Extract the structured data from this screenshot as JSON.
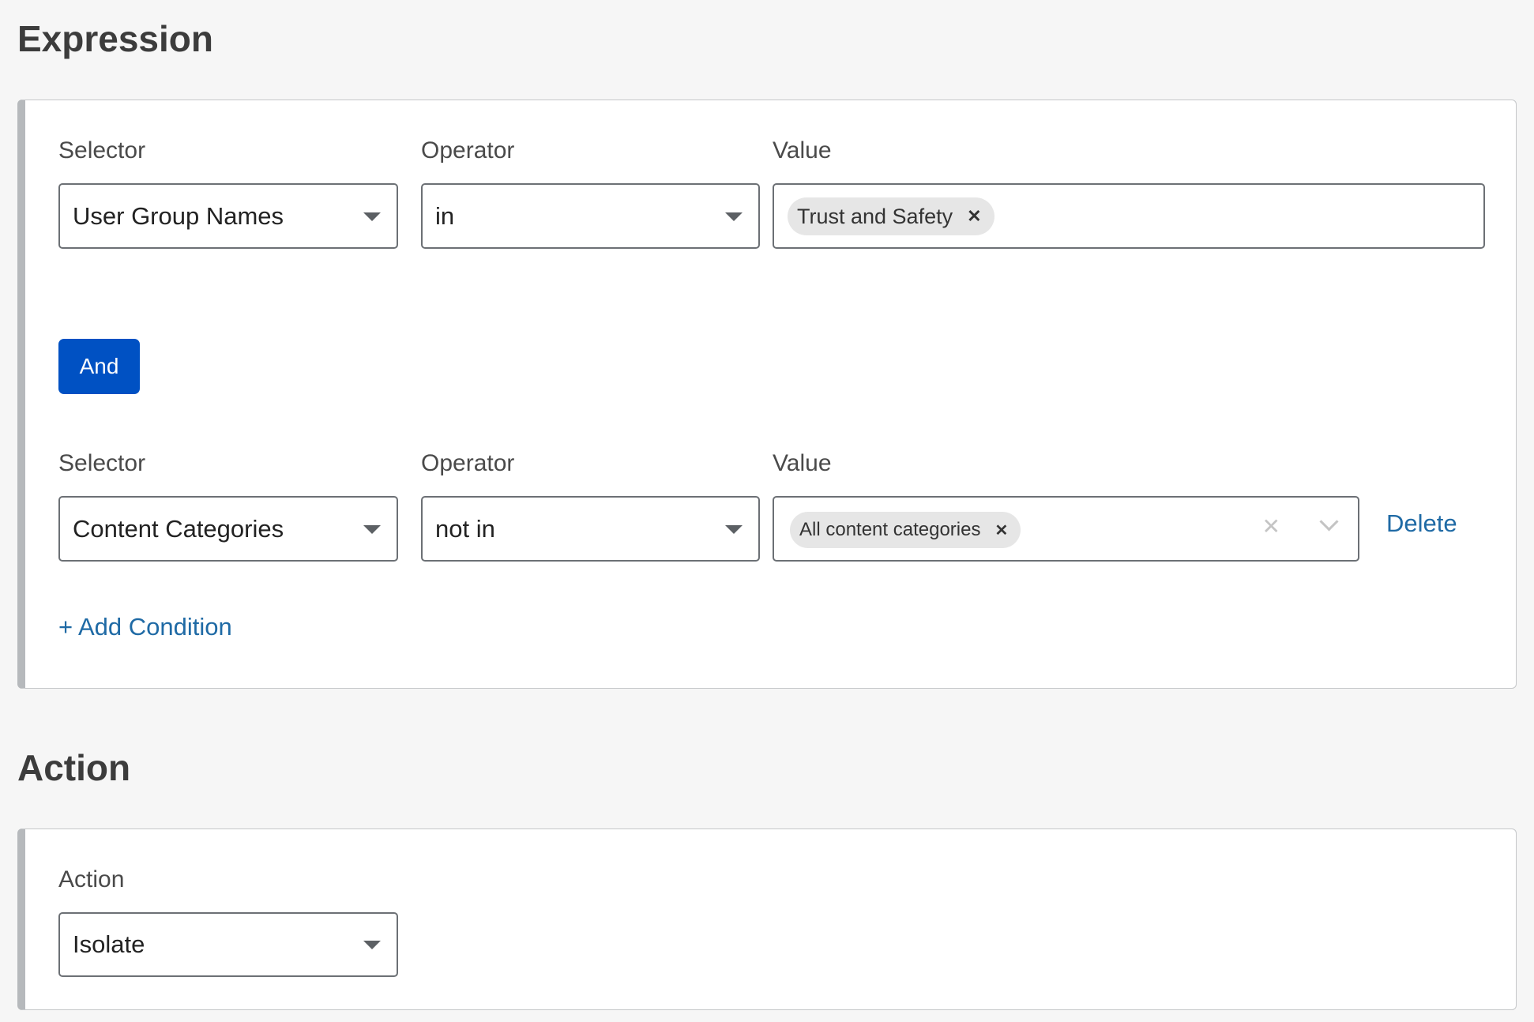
{
  "expression": {
    "heading": "Expression",
    "conditions": [
      {
        "selector_label": "Selector",
        "selector_value": "User Group Names",
        "operator_label": "Operator",
        "operator_value": "in",
        "value_label": "Value",
        "value_chips": [
          "Trust and Safety"
        ]
      },
      {
        "selector_label": "Selector",
        "selector_value": "Content Categories",
        "operator_label": "Operator",
        "operator_value": "not in",
        "value_label": "Value",
        "value_chips": [
          "All content categories"
        ],
        "delete_label": "Delete"
      }
    ],
    "and_label": "And",
    "add_condition_label": "+ Add Condition"
  },
  "action": {
    "heading": "Action",
    "label": "Action",
    "value": "Isolate"
  },
  "colors": {
    "primary": "#0051c3",
    "link": "#1f6aa5"
  }
}
